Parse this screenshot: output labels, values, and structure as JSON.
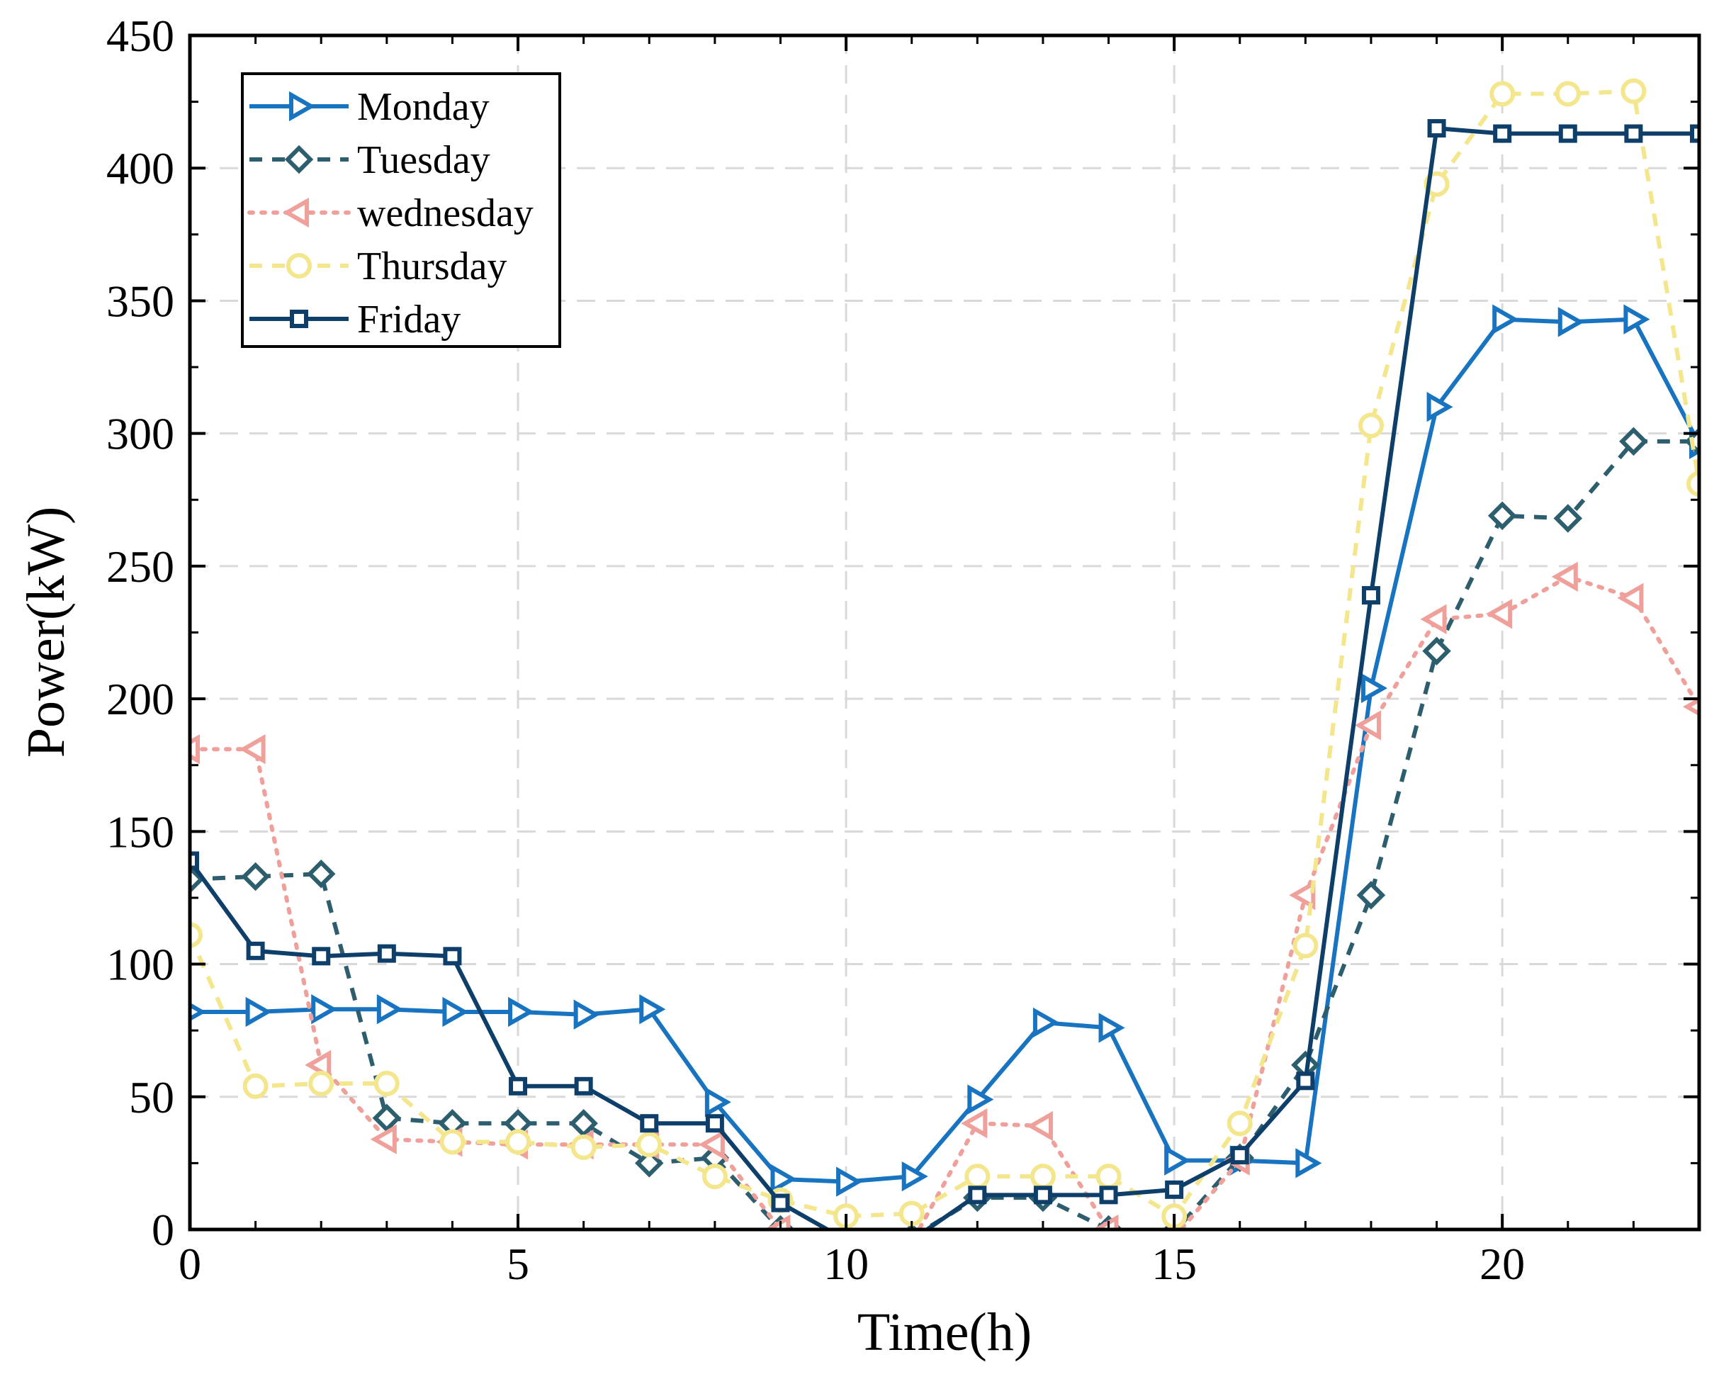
{
  "chart_data": {
    "type": "line",
    "title": "",
    "xlabel": "Time(h)",
    "ylabel": "Power(kW)",
    "xlim": [
      0,
      23
    ],
    "ylim": [
      0,
      450
    ],
    "xticks": [
      0,
      5,
      10,
      15,
      20
    ],
    "yticks": [
      0,
      50,
      100,
      150,
      200,
      250,
      300,
      350,
      400,
      450
    ],
    "grid": true,
    "legend_position": "top-left",
    "x": [
      0,
      1,
      2,
      3,
      4,
      5,
      6,
      7,
      8,
      9,
      10,
      11,
      12,
      13,
      14,
      15,
      16,
      17,
      18,
      19,
      20,
      21,
      22,
      23
    ],
    "series": [
      {
        "name": "Monday",
        "color": "#1874c0",
        "line_style": "solid",
        "marker": "triangle-right",
        "values": [
          82,
          82,
          83,
          83,
          82,
          82,
          81,
          83,
          48,
          19,
          18,
          20,
          49,
          78,
          76,
          26,
          26,
          25,
          204,
          310,
          343,
          342,
          343,
          296
        ]
      },
      {
        "name": "Tuesday",
        "color": "#2d5e6d",
        "line_style": "dashed",
        "marker": "diamond",
        "values": [
          132,
          133,
          134,
          42,
          40,
          40,
          40,
          25,
          27,
          0,
          -3,
          -3,
          12,
          12,
          0,
          -1,
          27,
          62,
          126,
          218,
          269,
          268,
          297,
          297
        ]
      },
      {
        "name": "wednesday",
        "color": "#f0a09a",
        "line_style": "dotted",
        "marker": "triangle-left",
        "values": [
          181,
          181,
          62,
          34,
          33,
          32,
          32,
          32,
          32,
          0,
          -5,
          -5,
          40,
          39,
          0,
          -3,
          26,
          126,
          190,
          230,
          232,
          246,
          238,
          197
        ]
      },
      {
        "name": "Thursday",
        "color": "#f3e68c",
        "line_style": "dashed",
        "marker": "circle",
        "values": [
          111,
          54,
          55,
          55,
          33,
          33,
          31,
          32,
          20,
          11,
          5,
          6,
          20,
          20,
          20,
          5,
          40,
          107,
          303,
          394,
          428,
          428,
          429,
          281
        ]
      },
      {
        "name": "Friday",
        "color": "#0e3f6a",
        "line_style": "solid",
        "marker": "square",
        "values": [
          139,
          105,
          103,
          104,
          103,
          54,
          54,
          40,
          40,
          10,
          -4,
          -4,
          13,
          13,
          13,
          15,
          28,
          56,
          239,
          415,
          413,
          413,
          413,
          413
        ]
      }
    ]
  }
}
